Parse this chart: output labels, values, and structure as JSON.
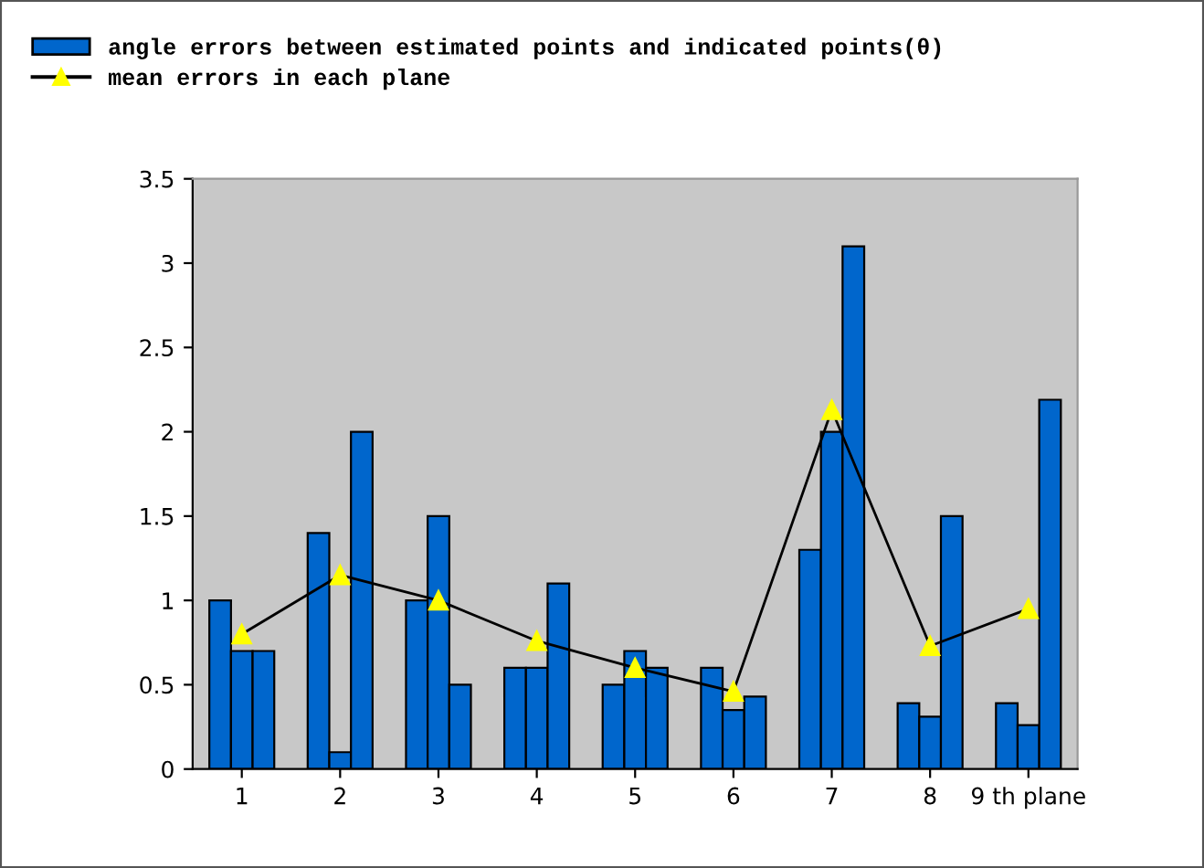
{
  "chart_data": {
    "type": "bar",
    "categories": [
      "1",
      "2",
      "3",
      "4",
      "5",
      "6",
      "7",
      "8",
      "9 th plane"
    ],
    "series": [
      {
        "name": "angle errors between estimated points and indicated points(θ)",
        "color": "#0066cc",
        "values": [
          1.0,
          1.4,
          1.0,
          0.6,
          0.5,
          0.6,
          1.3,
          0.39,
          0.39
        ]
      },
      {
        "color": "#0066cc",
        "values": [
          0.7,
          0.1,
          1.5,
          0.6,
          0.7,
          0.35,
          2.0,
          0.31,
          0.26
        ]
      },
      {
        "color": "#0066cc",
        "values": [
          0.7,
          2.0,
          0.5,
          1.1,
          0.6,
          0.43,
          3.1,
          1.5,
          2.19
        ]
      },
      {
        "name": "mean errors in each plane",
        "type": "line",
        "color": "#000000",
        "marker": "triangle",
        "values": [
          0.8,
          1.15,
          1.0,
          0.76,
          0.6,
          0.46,
          2.13,
          0.73,
          0.95
        ]
      }
    ],
    "ylim": [
      0,
      3.5
    ],
    "yticks": [
      0,
      0.5,
      1,
      1.5,
      2,
      2.5,
      3,
      3.5
    ],
    "grid": false,
    "legend": "top left"
  }
}
